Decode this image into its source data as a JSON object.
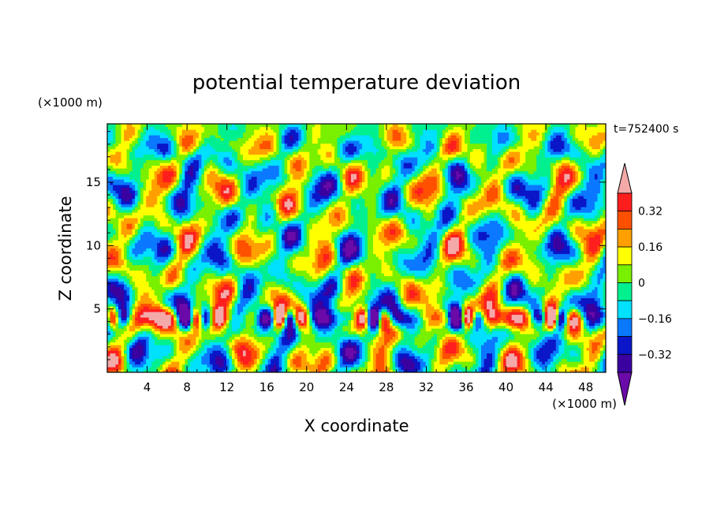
{
  "chart_data": {
    "type": "heatmap",
    "title": "potential temperature deviation",
    "xlabel": "X coordinate",
    "ylabel": "Z coordinate",
    "x_unit": "(×1000 m)",
    "y_unit": "(×1000 m)",
    "time_label": "t=752400 s",
    "xlim": [
      0,
      50
    ],
    "ylim": [
      0,
      19.6
    ],
    "x_ticks": [
      4,
      8,
      12,
      16,
      20,
      24,
      28,
      32,
      36,
      40,
      44,
      48
    ],
    "y_ticks": [
      5,
      10,
      15
    ],
    "colorbar": {
      "levels": [
        -0.4,
        -0.32,
        -0.24,
        -0.16,
        -0.08,
        0,
        0.08,
        0.16,
        0.24,
        0.32,
        0.4
      ],
      "tick_labels": [
        "0.32",
        "0.16",
        "0",
        "−0.16",
        "−0.32"
      ],
      "tick_values": [
        0.32,
        0.16,
        0,
        -0.16,
        -0.32
      ],
      "colors": [
        "#6a0aa8",
        "#3a00a0",
        "#0a16c8",
        "#0a78ff",
        "#00e0ff",
        "#00f090",
        "#78f000",
        "#ffff00",
        "#ffa000",
        "#ff5000",
        "#ff1e1e",
        "#f4a9a9"
      ]
    }
  }
}
